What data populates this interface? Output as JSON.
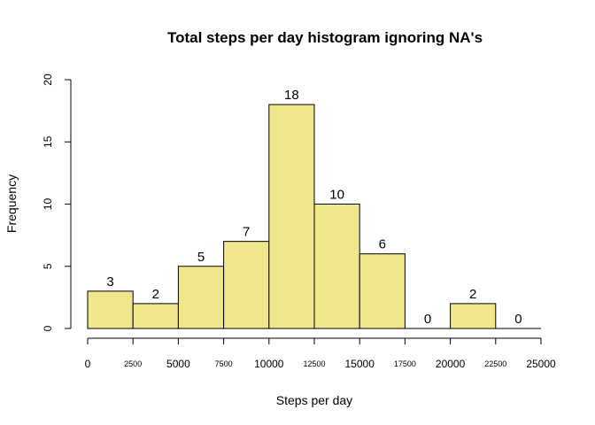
{
  "chart_data": {
    "type": "bar",
    "title": "Total steps per day histogram ignoring NA's",
    "xlabel": "Steps per day",
    "ylabel": "Frequency",
    "bins": [
      {
        "from": 0,
        "to": 2500,
        "value": 3
      },
      {
        "from": 2500,
        "to": 5000,
        "value": 2
      },
      {
        "from": 5000,
        "to": 7500,
        "value": 5
      },
      {
        "from": 7500,
        "to": 10000,
        "value": 7
      },
      {
        "from": 10000,
        "to": 12500,
        "value": 18
      },
      {
        "from": 12500,
        "to": 15000,
        "value": 10
      },
      {
        "from": 15000,
        "to": 17500,
        "value": 6
      },
      {
        "from": 17500,
        "to": 20000,
        "value": 0
      },
      {
        "from": 20000,
        "to": 22500,
        "value": 2
      },
      {
        "from": 22500,
        "to": 25000,
        "value": 0
      }
    ],
    "data_labels": [
      "3",
      "2",
      "5",
      "7",
      "18",
      "10",
      "6",
      "0",
      "2",
      "0"
    ],
    "xlim": [
      0,
      25000
    ],
    "ylim": [
      0,
      20
    ],
    "x_ticks": [
      {
        "value": 0,
        "label": "0",
        "major": true
      },
      {
        "value": 2500,
        "label": "2500",
        "major": false
      },
      {
        "value": 5000,
        "label": "5000",
        "major": true
      },
      {
        "value": 7500,
        "label": "7500",
        "major": false
      },
      {
        "value": 10000,
        "label": "10000",
        "major": true
      },
      {
        "value": 12500,
        "label": "12500",
        "major": false
      },
      {
        "value": 15000,
        "label": "15000",
        "major": true
      },
      {
        "value": 17500,
        "label": "17500",
        "major": false
      },
      {
        "value": 20000,
        "label": "20000",
        "major": true
      },
      {
        "value": 22500,
        "label": "22500",
        "major": false
      },
      {
        "value": 25000,
        "label": "25000",
        "major": true
      }
    ],
    "y_ticks": [
      {
        "value": 0,
        "label": "0"
      },
      {
        "value": 5,
        "label": "5"
      },
      {
        "value": 10,
        "label": "10"
      },
      {
        "value": 15,
        "label": "15"
      },
      {
        "value": 20,
        "label": "20"
      }
    ],
    "bar_color": "#f0e68c",
    "grid": false
  }
}
